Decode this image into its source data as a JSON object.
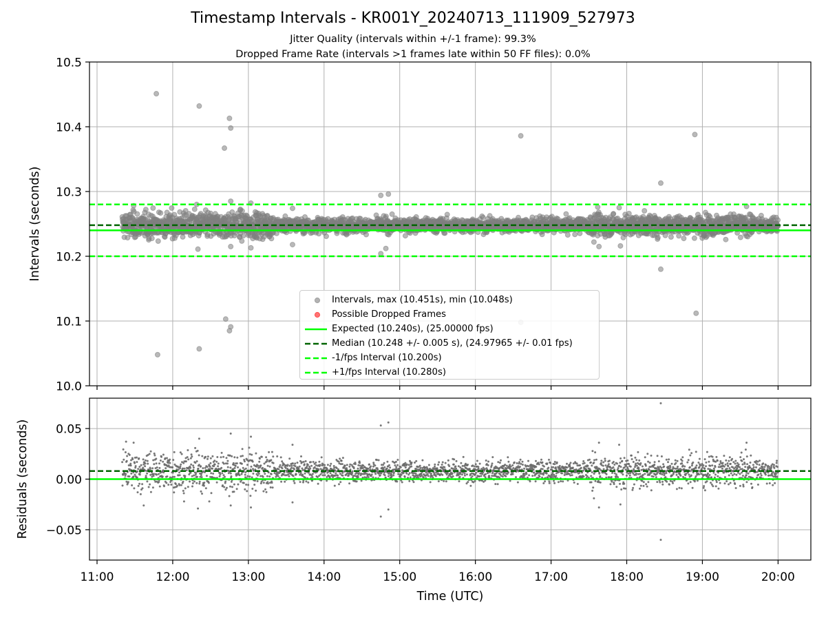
{
  "title": "Timestamp Intervals - KR001Y_20240713_111909_527973",
  "subtitle_lines": [
    "Jitter Quality (intervals within +/-1 frame): 99.3%",
    "Dropped Frame Rate (intervals >1 frames late within 50 FF files): 0.0%"
  ],
  "colors": {
    "intervals": "#808080",
    "dropped": "#ff0000",
    "expected": "#00ff00",
    "median": "#006400",
    "fps_bounds": "#00ff00",
    "grid": "#b0b0b0"
  },
  "chart_data": [
    {
      "type": "scatter",
      "xlabel": "",
      "ylabel": "Intervals (seconds)",
      "ylim": [
        10.0,
        10.5
      ],
      "yticks": [
        "10.0",
        "10.1",
        "10.2",
        "10.3",
        "10.4",
        "10.5"
      ],
      "xlim": [
        "10:54",
        "20:26"
      ],
      "grid": true,
      "legend_position": "lower center",
      "series": [
        {
          "name": "Intervals, max (10.451s), min (10.048s)",
          "kind": "scatter",
          "color": "#808080",
          "band": {
            "x_start": "11:20",
            "x_end": "20:00",
            "center": 10.248,
            "spread": 0.006
          },
          "outliers": [
            {
              "x": "11:47",
              "y": 10.451
            },
            {
              "x": "12:21",
              "y": 10.432
            },
            {
              "x": "12:45",
              "y": 10.413
            },
            {
              "x": "12:46",
              "y": 10.398
            },
            {
              "x": "12:41",
              "y": 10.367
            },
            {
              "x": "16:36",
              "y": 10.386
            },
            {
              "x": "18:54",
              "y": 10.388
            },
            {
              "x": "18:27",
              "y": 10.313
            },
            {
              "x": "14:45",
              "y": 10.294
            },
            {
              "x": "14:51",
              "y": 10.296
            },
            {
              "x": "12:46",
              "y": 10.285
            },
            {
              "x": "13:02",
              "y": 10.282
            },
            {
              "x": "11:29",
              "y": 10.278
            },
            {
              "x": "12:19",
              "y": 10.28
            },
            {
              "x": "13:35",
              "y": 10.274
            },
            {
              "x": "17:37",
              "y": 10.276
            },
            {
              "x": "17:54",
              "y": 10.275
            },
            {
              "x": "19:35",
              "y": 10.277
            },
            {
              "x": "12:42",
              "y": 10.103
            },
            {
              "x": "12:46",
              "y": 10.091
            },
            {
              "x": "12:45",
              "y": 10.085
            },
            {
              "x": "16:36",
              "y": 10.098
            },
            {
              "x": "18:55",
              "y": 10.112
            },
            {
              "x": "18:27",
              "y": 10.18
            },
            {
              "x": "11:48",
              "y": 10.048
            },
            {
              "x": "12:21",
              "y": 10.057
            },
            {
              "x": "14:45",
              "y": 10.204
            },
            {
              "x": "14:49",
              "y": 10.212
            },
            {
              "x": "17:34",
              "y": 10.222
            },
            {
              "x": "17:38",
              "y": 10.215
            },
            {
              "x": "17:55",
              "y": 10.216
            },
            {
              "x": "13:02",
              "y": 10.213
            },
            {
              "x": "12:46",
              "y": 10.215
            },
            {
              "x": "12:20",
              "y": 10.211
            },
            {
              "x": "13:35",
              "y": 10.218
            }
          ]
        },
        {
          "name": "Possible Dropped Frames",
          "kind": "scatter",
          "color": "#ff0000",
          "points": []
        },
        {
          "name": "Expected (10.240s), (25.00000 fps)",
          "kind": "hline",
          "y": 10.24,
          "style": "solid",
          "color": "#00ff00"
        },
        {
          "name": "Median (10.248 +/- 0.005 s), (24.97965 +/- 0.01 fps)",
          "kind": "hline",
          "y": 10.248,
          "style": "dashed",
          "color": "#006400"
        },
        {
          "name": "-1/fps Interval (10.200s)",
          "kind": "hline",
          "y": 10.2,
          "style": "dashed",
          "color": "#00ff00"
        },
        {
          "name": "+1/fps Interval (10.280s)",
          "kind": "hline",
          "y": 10.28,
          "style": "dashed",
          "color": "#00ff00"
        }
      ]
    },
    {
      "type": "scatter",
      "xlabel": "Time (UTC)",
      "ylabel": "Residuals (seconds)",
      "ylim": [
        -0.08,
        0.08
      ],
      "yticks": [
        {
          "value": -0.05,
          "label": "−0.05"
        },
        {
          "value": 0.0,
          "label": "0.00"
        },
        {
          "value": 0.05,
          "label": "0.05"
        }
      ],
      "xticks": [
        "11:00",
        "12:00",
        "13:00",
        "14:00",
        "15:00",
        "16:00",
        "17:00",
        "18:00",
        "19:00",
        "20:00"
      ],
      "xlim": [
        "10:54",
        "20:26"
      ],
      "grid": true,
      "series": [
        {
          "kind": "scatter",
          "color": "#696969",
          "band": {
            "x_start": "11:20",
            "x_end": "20:00",
            "center": 0.008,
            "spread": 0.006
          },
          "outliers": [
            {
              "x": "18:27",
              "y": 0.075
            },
            {
              "x": "18:27",
              "y": -0.06
            },
            {
              "x": "14:45",
              "y": -0.037
            },
            {
              "x": "14:51",
              "y": -0.03
            },
            {
              "x": "14:45",
              "y": 0.053
            },
            {
              "x": "14:51",
              "y": 0.056
            },
            {
              "x": "12:46",
              "y": 0.045
            },
            {
              "x": "13:02",
              "y": 0.042
            },
            {
              "x": "12:21",
              "y": 0.04
            },
            {
              "x": "11:23",
              "y": 0.037
            },
            {
              "x": "11:29",
              "y": 0.036
            },
            {
              "x": "13:35",
              "y": 0.034
            },
            {
              "x": "17:38",
              "y": 0.036
            },
            {
              "x": "17:54",
              "y": 0.034
            },
            {
              "x": "19:35",
              "y": 0.036
            },
            {
              "x": "18:55",
              "y": 0.027
            },
            {
              "x": "12:20",
              "y": -0.029
            },
            {
              "x": "12:46",
              "y": -0.026
            },
            {
              "x": "13:02",
              "y": -0.028
            },
            {
              "x": "13:35",
              "y": -0.023
            },
            {
              "x": "17:34",
              "y": -0.019
            },
            {
              "x": "17:38",
              "y": -0.028
            },
            {
              "x": "17:55",
              "y": -0.025
            },
            {
              "x": "11:37",
              "y": -0.026
            },
            {
              "x": "12:09",
              "y": -0.022
            },
            {
              "x": "12:29",
              "y": -0.022
            }
          ]
        },
        {
          "kind": "hline",
          "y": 0.0,
          "style": "solid",
          "color": "#00ff00"
        },
        {
          "kind": "hline",
          "y": 0.008,
          "style": "dashed",
          "color": "#006400"
        }
      ]
    }
  ]
}
